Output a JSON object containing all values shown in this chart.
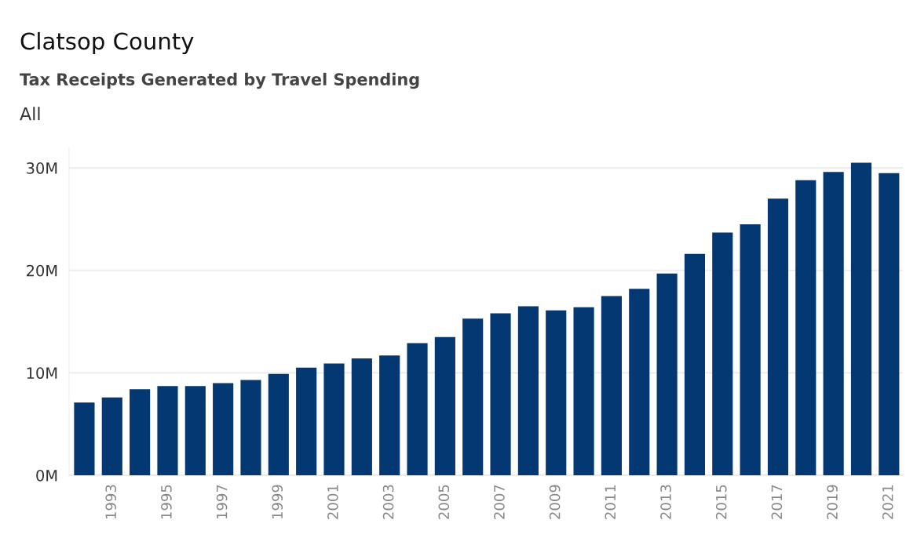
{
  "chart_data": {
    "type": "bar",
    "title": "Clatsop County",
    "subtitle": "Tax Receipts Generated by Travel Spending",
    "annotations": [
      "All"
    ],
    "categories": [
      null,
      "1993",
      null,
      "1995",
      null,
      "1997",
      null,
      "1999",
      null,
      "2001",
      null,
      "2003",
      null,
      "2005",
      null,
      "2007",
      null,
      "2009",
      null,
      "2011",
      null,
      "2013",
      null,
      "2015",
      null,
      "2017",
      null,
      "2019",
      null,
      "2021"
    ],
    "values": [
      7.1,
      7.6,
      8.4,
      8.7,
      8.7,
      9.0,
      9.3,
      9.9,
      10.5,
      10.9,
      11.4,
      11.7,
      12.9,
      13.5,
      15.3,
      15.8,
      16.5,
      16.1,
      16.4,
      17.5,
      18.2,
      19.7,
      21.6,
      23.7,
      24.5,
      27.0,
      28.8,
      29.6,
      30.5,
      29.5
    ],
    "color": "#033872",
    "ylim": [
      0,
      32
    ],
    "yticks": [
      {
        "value": 0,
        "label": "0M"
      },
      {
        "value": 10,
        "label": "10M"
      },
      {
        "value": 20,
        "label": "20M"
      },
      {
        "value": 30,
        "label": "30M"
      }
    ],
    "grid": "y"
  }
}
